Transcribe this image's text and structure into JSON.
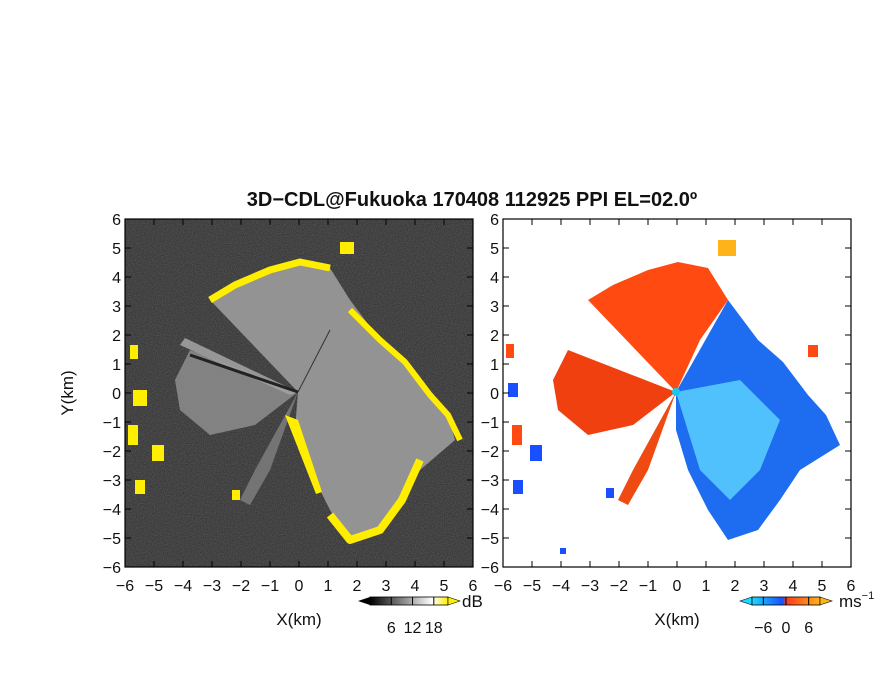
{
  "title": "3D−CDL@Fukuoka 170408 112925 PPI EL=02.0º",
  "chart_data": [
    {
      "type": "heatmap",
      "panel": "left",
      "quantity": "SNR",
      "xlabel": "X(km)",
      "ylabel": "Y(km)",
      "xlim": [
        -6,
        6
      ],
      "ylim": [
        -6,
        6
      ],
      "x_ticks": [
        "−6",
        "−5",
        "−4",
        "−3",
        "−2",
        "−1",
        "0",
        "1",
        "2",
        "3",
        "4",
        "5",
        "6"
      ],
      "y_ticks": [
        "6",
        "5",
        "4",
        "3",
        "2",
        "1",
        "0",
        "−1",
        "−2",
        "−3",
        "−4",
        "−5",
        "−6"
      ],
      "colorbar": {
        "unit": "dB",
        "ticks": [
          "6",
          "12",
          "18"
        ],
        "range": [
          0,
          22
        ],
        "colors": [
          "#000000",
          "#ffffff",
          "#ffee00"
        ]
      },
      "background_color": "#2a2a2a",
      "highlight_color": "#ffee00"
    },
    {
      "type": "heatmap",
      "panel": "right",
      "quantity": "Doppler velocity",
      "xlabel": "X(km)",
      "ylabel": "",
      "xlim": [
        -6,
        6
      ],
      "ylim": [
        -6,
        6
      ],
      "x_ticks": [
        "−6",
        "−5",
        "−4",
        "−3",
        "−2",
        "−1",
        "0",
        "1",
        "2",
        "3",
        "4",
        "5",
        "6"
      ],
      "y_ticks": [
        "6",
        "5",
        "4",
        "3",
        "2",
        "1",
        "0",
        "−1",
        "−2",
        "−3",
        "−4",
        "−5",
        "−6"
      ],
      "colorbar": {
        "unit": "ms",
        "unit_exp": "−1",
        "ticks": [
          "−6",
          "0",
          "6"
        ],
        "range": [
          -9,
          9
        ],
        "colors": [
          "#1ad8ff",
          "#1a4fff",
          "#ff3a1a",
          "#ffb31a"
        ]
      },
      "approaching_color": "#ff4a12",
      "receding_color": "#1e6cf0"
    }
  ]
}
